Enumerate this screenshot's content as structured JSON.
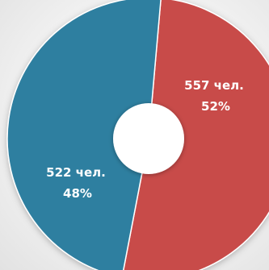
{
  "chart_data": {
    "type": "pie",
    "style": "donut",
    "slices": [
      {
        "value": 557,
        "count_label": "557 чел.",
        "percent": 52,
        "percent_label": "52%",
        "color": "#c84c4a"
      },
      {
        "value": 522,
        "count_label": "522 чел.",
        "percent": 48,
        "percent_label": "48%",
        "color": "#2f7fa0"
      }
    ]
  }
}
